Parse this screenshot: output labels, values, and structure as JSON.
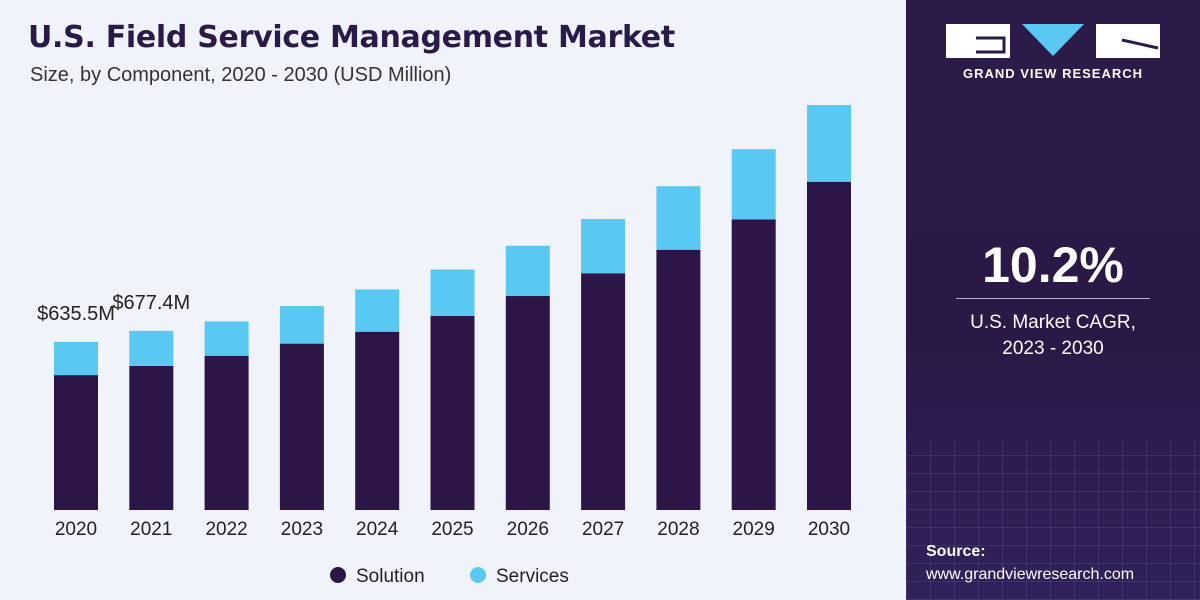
{
  "chart_data": {
    "type": "bar",
    "stacked": true,
    "title": "U.S. Field Service Management Market",
    "subtitle": "Size, by Component, 2020 - 2030 (USD Million)",
    "categories": [
      "2020",
      "2021",
      "2022",
      "2023",
      "2024",
      "2025",
      "2026",
      "2027",
      "2028",
      "2029",
      "2030"
    ],
    "series": [
      {
        "name": "Solution",
        "color": "#2c1648",
        "values": [
          510,
          545,
          583,
          629,
          674,
          734,
          809,
          895,
          984,
          1099,
          1241
        ]
      },
      {
        "name": "Services",
        "color": "#59c8f2",
        "values": [
          125.5,
          132.4,
          130,
          142,
          160,
          175,
          190,
          205,
          240,
          265,
          290
        ]
      }
    ],
    "annotations": [
      {
        "category": "2020",
        "text": "$635.5M"
      },
      {
        "category": "2021",
        "text": "$677.4M"
      }
    ],
    "ylim": [
      0,
      1550
    ],
    "legend_position": "bottom-center",
    "grid": false
  },
  "side_panel": {
    "logo_text": "GRAND VIEW RESEARCH",
    "cagr_value": "10.2%",
    "cagr_label_line1": "U.S. Market CAGR,",
    "cagr_label_line2": "2023 - 2030",
    "source_label": "Source:",
    "source_url": "www.grandviewresearch.com"
  }
}
